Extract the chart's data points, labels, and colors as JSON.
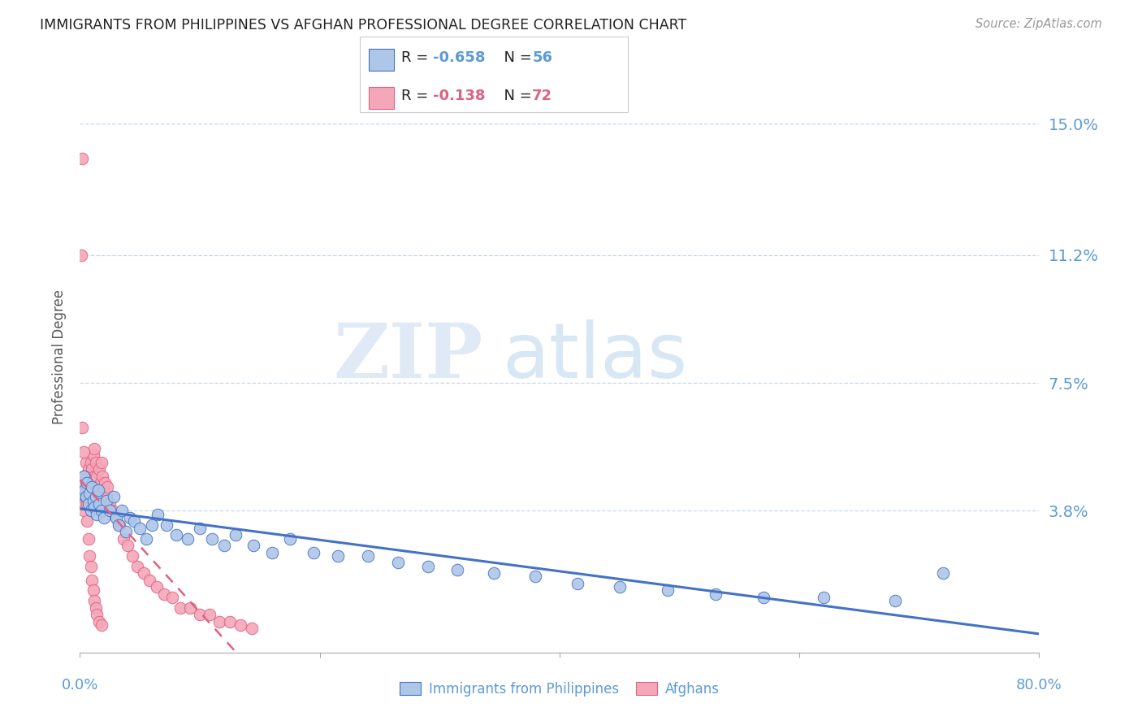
{
  "title": "IMMIGRANTS FROM PHILIPPINES VS AFGHAN PROFESSIONAL DEGREE CORRELATION CHART",
  "source": "Source: ZipAtlas.com",
  "ylabel": "Professional Degree",
  "ytick_labels": [
    "15.0%",
    "11.2%",
    "7.5%",
    "3.8%"
  ],
  "ytick_values": [
    0.15,
    0.112,
    0.075,
    0.038
  ],
  "xmin": 0.0,
  "xmax": 0.8,
  "ymin": -0.003,
  "ymax": 0.168,
  "color_blue": "#aec6e8",
  "color_pink": "#f4a7b9",
  "color_blue_line": "#4472c4",
  "color_pink_line": "#e06080",
  "color_axis_labels": "#5b9bd5",
  "watermark_zip": "ZIP",
  "watermark_atlas": "atlas",
  "phil_x": [
    0.002,
    0.003,
    0.004,
    0.005,
    0.006,
    0.007,
    0.008,
    0.009,
    0.01,
    0.011,
    0.012,
    0.013,
    0.014,
    0.015,
    0.016,
    0.018,
    0.02,
    0.022,
    0.025,
    0.028,
    0.03,
    0.032,
    0.035,
    0.038,
    0.042,
    0.045,
    0.05,
    0.055,
    0.06,
    0.065,
    0.072,
    0.08,
    0.09,
    0.1,
    0.11,
    0.12,
    0.13,
    0.145,
    0.16,
    0.175,
    0.195,
    0.215,
    0.24,
    0.265,
    0.29,
    0.315,
    0.345,
    0.38,
    0.415,
    0.45,
    0.49,
    0.53,
    0.57,
    0.62,
    0.68,
    0.72
  ],
  "phil_y": [
    0.043,
    0.048,
    0.044,
    0.042,
    0.046,
    0.04,
    0.043,
    0.038,
    0.045,
    0.041,
    0.039,
    0.042,
    0.037,
    0.044,
    0.04,
    0.038,
    0.036,
    0.041,
    0.038,
    0.042,
    0.036,
    0.034,
    0.038,
    0.032,
    0.036,
    0.035,
    0.033,
    0.03,
    0.034,
    0.037,
    0.034,
    0.031,
    0.03,
    0.033,
    0.03,
    0.028,
    0.031,
    0.028,
    0.026,
    0.03,
    0.026,
    0.025,
    0.025,
    0.023,
    0.022,
    0.021,
    0.02,
    0.019,
    0.017,
    0.016,
    0.015,
    0.014,
    0.013,
    0.013,
    0.012,
    0.02
  ],
  "afghan_x": [
    0.001,
    0.002,
    0.003,
    0.003,
    0.004,
    0.004,
    0.005,
    0.005,
    0.006,
    0.006,
    0.007,
    0.007,
    0.008,
    0.008,
    0.009,
    0.009,
    0.01,
    0.01,
    0.011,
    0.011,
    0.012,
    0.012,
    0.013,
    0.013,
    0.014,
    0.015,
    0.016,
    0.017,
    0.018,
    0.019,
    0.02,
    0.021,
    0.022,
    0.023,
    0.025,
    0.027,
    0.03,
    0.033,
    0.036,
    0.04,
    0.044,
    0.048,
    0.053,
    0.058,
    0.064,
    0.07,
    0.077,
    0.084,
    0.092,
    0.1,
    0.108,
    0.116,
    0.125,
    0.134,
    0.143,
    0.002,
    0.003,
    0.004,
    0.005,
    0.006,
    0.007,
    0.008,
    0.009,
    0.01,
    0.011,
    0.012,
    0.013,
    0.014,
    0.016,
    0.018,
    0.001,
    0.002
  ],
  "afghan_y": [
    0.04,
    0.042,
    0.038,
    0.045,
    0.04,
    0.048,
    0.043,
    0.052,
    0.04,
    0.046,
    0.044,
    0.05,
    0.042,
    0.048,
    0.045,
    0.052,
    0.043,
    0.05,
    0.046,
    0.054,
    0.048,
    0.056,
    0.045,
    0.052,
    0.048,
    0.045,
    0.05,
    0.046,
    0.052,
    0.048,
    0.044,
    0.046,
    0.042,
    0.045,
    0.04,
    0.038,
    0.036,
    0.034,
    0.03,
    0.028,
    0.025,
    0.022,
    0.02,
    0.018,
    0.016,
    0.014,
    0.013,
    0.01,
    0.01,
    0.008,
    0.008,
    0.006,
    0.006,
    0.005,
    0.004,
    0.062,
    0.055,
    0.048,
    0.042,
    0.035,
    0.03,
    0.025,
    0.022,
    0.018,
    0.015,
    0.012,
    0.01,
    0.008,
    0.006,
    0.005,
    0.112,
    0.14
  ]
}
